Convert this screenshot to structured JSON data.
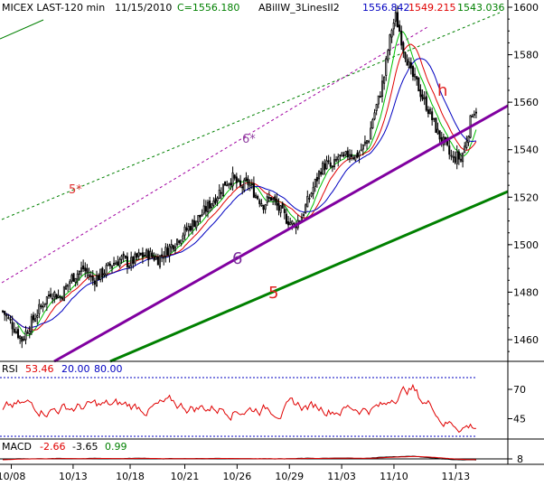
{
  "chart_data": {
    "type": "candlestick",
    "header": {
      "symbol": "MICEX LAST-120 min",
      "date": "11/15/2010",
      "close_label": "C=1556.180",
      "study": "ABillW_3LinesII2",
      "ma_fast": "1556.842",
      "ma_mid": "1549.215",
      "ma_slow": "1543.036"
    },
    "price_axis": {
      "ticks": [
        1600,
        1580,
        1560,
        1540,
        1520,
        1500,
        1480,
        1460
      ],
      "ylim": [
        1446,
        1612
      ]
    },
    "x_labels": [
      "10/08",
      "10/13",
      "10/18",
      "10/21",
      "10/26",
      "10/29",
      "11/03",
      "11/10",
      "11/13"
    ],
    "annotations": {
      "label_5_star": "5*",
      "label_6_star": "6*",
      "label_6": "6",
      "label_5": "5",
      "label_h": "h"
    },
    "price_path": [
      [
        0,
        1472
      ],
      [
        6,
        1465
      ],
      [
        10,
        1460
      ],
      [
        14,
        1466
      ],
      [
        20,
        1474
      ],
      [
        25,
        1480
      ],
      [
        30,
        1478
      ],
      [
        36,
        1486
      ],
      [
        42,
        1490
      ],
      [
        47,
        1485
      ],
      [
        52,
        1488
      ],
      [
        57,
        1492
      ],
      [
        62,
        1494
      ],
      [
        66,
        1492
      ],
      [
        71,
        1495
      ],
      [
        76,
        1496
      ],
      [
        81,
        1494
      ],
      [
        86,
        1498
      ],
      [
        92,
        1503
      ],
      [
        98,
        1508
      ],
      [
        103,
        1512
      ],
      [
        107,
        1516
      ],
      [
        112,
        1521
      ],
      [
        116,
        1526
      ],
      [
        120,
        1528
      ],
      [
        124,
        1524
      ],
      [
        128,
        1526
      ],
      [
        132,
        1521
      ],
      [
        136,
        1517
      ],
      [
        140,
        1520
      ],
      [
        144,
        1515
      ],
      [
        148,
        1511
      ],
      [
        152,
        1508
      ],
      [
        156,
        1512
      ],
      [
        160,
        1520
      ],
      [
        163,
        1526
      ],
      [
        166,
        1532
      ],
      [
        169,
        1534
      ],
      [
        172,
        1532
      ],
      [
        175,
        1537
      ],
      [
        178,
        1536
      ],
      [
        181,
        1539
      ],
      [
        184,
        1537
      ],
      [
        188,
        1541
      ],
      [
        191,
        1545
      ],
      [
        193,
        1553
      ],
      [
        196,
        1561
      ],
      [
        199,
        1571
      ],
      [
        201,
        1582
      ],
      [
        203,
        1591
      ],
      [
        205,
        1596
      ],
      [
        207,
        1590
      ],
      [
        209,
        1583
      ],
      [
        211,
        1578
      ],
      [
        213,
        1572
      ],
      [
        216,
        1568
      ],
      [
        219,
        1562
      ],
      [
        222,
        1557
      ],
      [
        225,
        1551
      ],
      [
        227,
        1547
      ],
      [
        229,
        1544
      ],
      [
        231,
        1542
      ],
      [
        233,
        1538
      ],
      [
        235,
        1536
      ],
      [
        237,
        1537
      ],
      [
        239,
        1536
      ],
      [
        241,
        1541
      ],
      [
        243,
        1548
      ],
      [
        245,
        1556
      ],
      [
        247,
        1557
      ]
    ],
    "rsi": {
      "label": "RSI",
      "value": "53.46",
      "lower": "20.00",
      "upper": "80.00",
      "ticks": [
        70,
        45
      ],
      "ylim": [
        30,
        80
      ]
    },
    "macd": {
      "label": "MACD",
      "macd": "-2.66",
      "signal": "-3.65",
      "hist": "0.99",
      "ticks": [
        8
      ],
      "ylim": [
        -12,
        12
      ]
    }
  }
}
